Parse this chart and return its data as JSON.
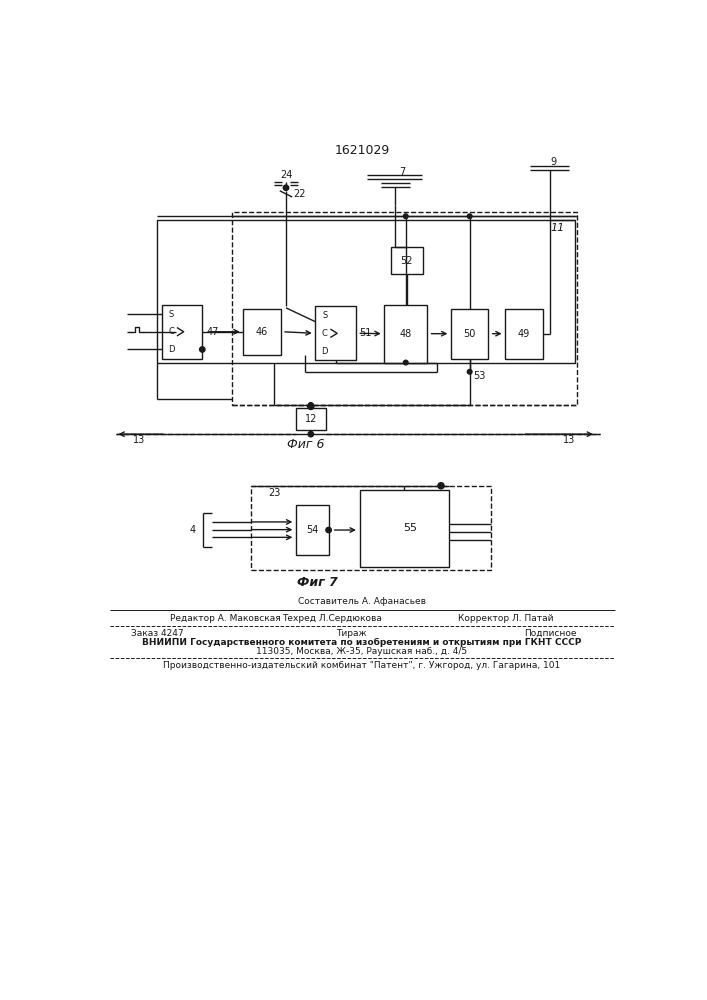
{
  "title": "1621029",
  "fig6_label": "Фиг 6",
  "fig7_label": "Фиг 7",
  "background_color": "#ffffff",
  "line_color": "#1a1a1a",
  "footer_line1": "Составитель А. Афанасьев",
  "footer_line2_left": "Редактор А. Маковская",
  "footer_line2_mid": "Техред Л.Сердюкова",
  "footer_line2_right": "Корректор Л. Патай",
  "footer_line3_left": "Заказ 4247",
  "footer_line3_mid": "Тираж",
  "footer_line3_right": "Подписное",
  "footer_line4": "ВНИИПИ Государственного комитета по изобретениям и открытиям при ГКНТ СССР",
  "footer_line5": "113035, Москва, Ж-35, Раушская наб., д. 4/5",
  "footer_line6": "Производственно-издательский комбинат \"Патент\", г. Ужгород, ул. Гагарина, 101"
}
